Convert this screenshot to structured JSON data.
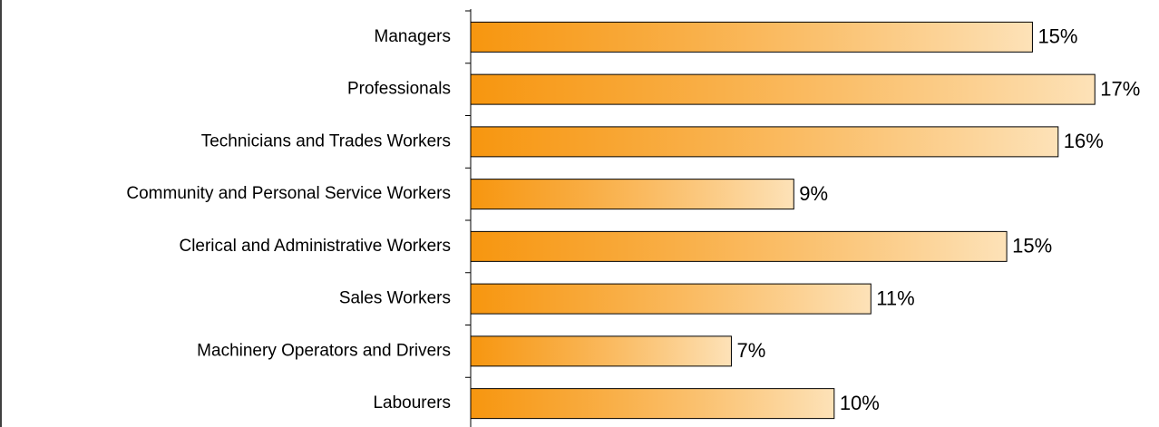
{
  "chart_data": {
    "type": "bar",
    "orientation": "horizontal",
    "categories": [
      "Managers",
      "Professionals",
      "Technicians and Trades Workers",
      "Community and Personal Service Workers",
      "Clerical and Administrative Workers",
      "Sales Workers",
      "Machinery Operators and Drivers",
      "Labourers"
    ],
    "values": [
      15.3,
      17.0,
      16.0,
      8.8,
      14.6,
      10.9,
      7.1,
      9.9
    ],
    "value_labels": [
      "15%",
      "17%",
      "16%",
      "9%",
      "15%",
      "11%",
      "7%",
      "10%"
    ],
    "color": [
      "#f7960f",
      "#fde2b8"
    ],
    "xlim": [
      0,
      18.5
    ]
  }
}
